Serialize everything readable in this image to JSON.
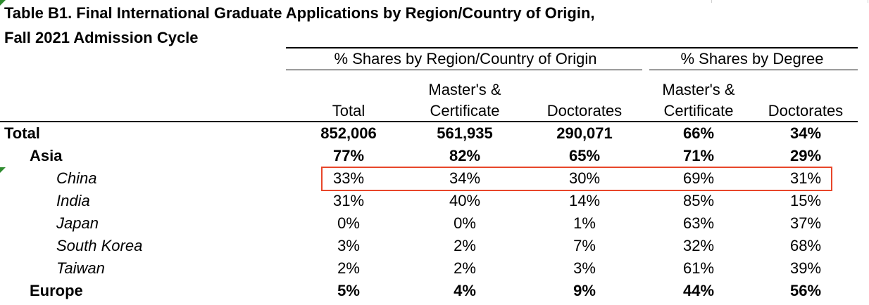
{
  "title": {
    "line1": "Table B1. Final International Graduate Applications by Region/Country of Origin,",
    "line2": "Fall 2021 Admission Cycle"
  },
  "groups": {
    "region_share": "% Shares by Region/Country of Origin",
    "degree_share": "% Shares by Degree"
  },
  "columns": {
    "total": "Total",
    "masters_1": "Master's &",
    "masters_2": "Certificate",
    "doctorates": "Doctorates",
    "deg_masters_1": "Master's &",
    "deg_masters_2": "Certificate",
    "deg_doctorates": "Doctorates"
  },
  "rows": [
    {
      "label": "Total",
      "level": 0,
      "total": "852,006",
      "masters": "561,935",
      "doctorates": "290,071",
      "deg_masters": "66%",
      "deg_doctorates": "34%"
    },
    {
      "label": "Asia",
      "level": 1,
      "total": "77%",
      "masters": "82%",
      "doctorates": "65%",
      "deg_masters": "71%",
      "deg_doctorates": "29%"
    },
    {
      "label": "China",
      "level": 2,
      "total": "33%",
      "masters": "34%",
      "doctorates": "30%",
      "deg_masters": "69%",
      "deg_doctorates": "31%"
    },
    {
      "label": "India",
      "level": 2,
      "total": "31%",
      "masters": "40%",
      "doctorates": "14%",
      "deg_masters": "85%",
      "deg_doctorates": "15%"
    },
    {
      "label": "Japan",
      "level": 2,
      "total": "0%",
      "masters": "0%",
      "doctorates": "1%",
      "deg_masters": "63%",
      "deg_doctorates": "37%"
    },
    {
      "label": "South Korea",
      "level": 2,
      "total": "3%",
      "masters": "2%",
      "doctorates": "7%",
      "deg_masters": "32%",
      "deg_doctorates": "68%"
    },
    {
      "label": "Taiwan",
      "level": 2,
      "total": "2%",
      "masters": "2%",
      "doctorates": "3%",
      "deg_masters": "61%",
      "deg_doctorates": "39%"
    },
    {
      "label": "Europe",
      "level": 1,
      "total": "5%",
      "masters": "4%",
      "doctorates": "9%",
      "deg_masters": "44%",
      "deg_doctorates": "56%"
    }
  ],
  "highlight_color": "#e8462a",
  "comment_marker_color": "#2e8b2e"
}
